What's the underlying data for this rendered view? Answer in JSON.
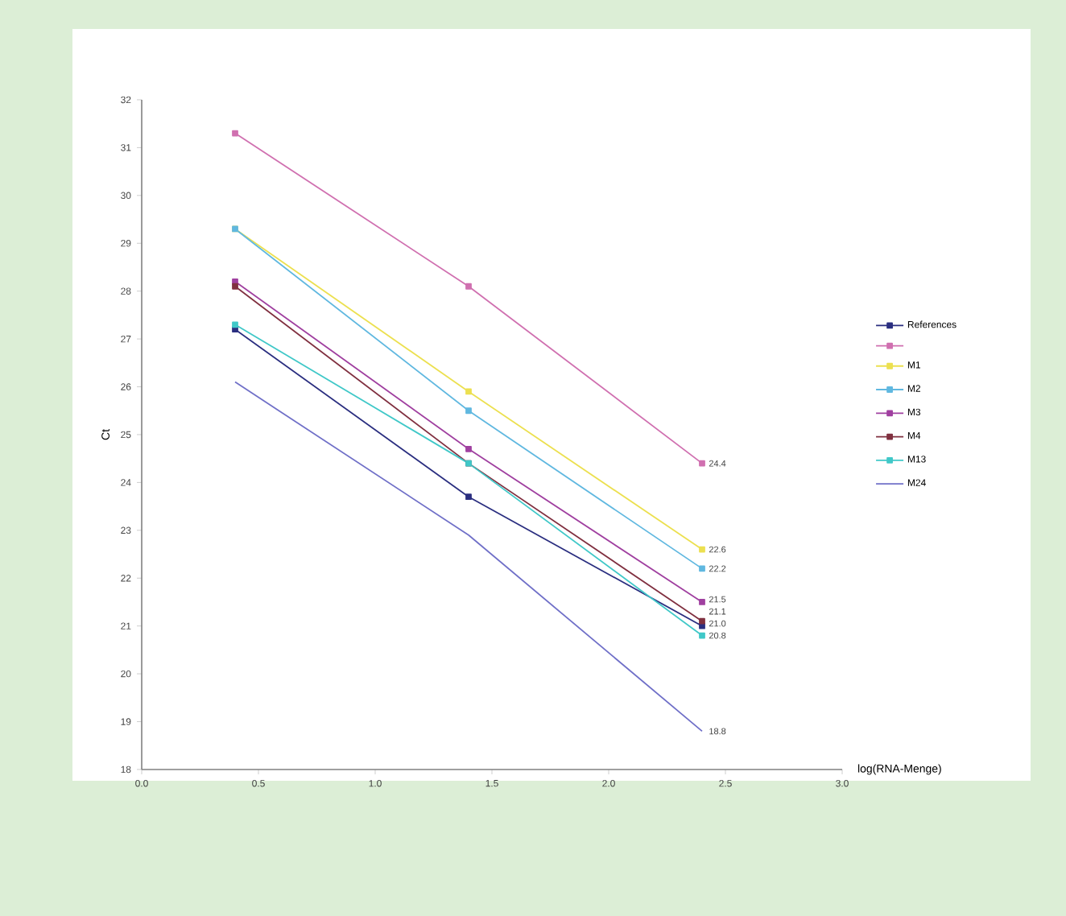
{
  "chart_data": {
    "type": "line",
    "xlabel": "log(RNA-Menge)",
    "ylabel": "Ct",
    "x": [
      0.4,
      1.4,
      2.4
    ],
    "xlim": [
      0,
      3
    ],
    "ylim": [
      18,
      32
    ],
    "xticks": [
      {
        "value": 0,
        "label": "0.0"
      },
      {
        "value": 0.5,
        "label": "0.5"
      },
      {
        "value": 1,
        "label": "1.0"
      },
      {
        "value": 1.5,
        "label": "1.5"
      },
      {
        "value": 2,
        "label": "2.0"
      },
      {
        "value": 2.5,
        "label": "2.5"
      },
      {
        "value": 3,
        "label": "3.0"
      }
    ],
    "yticks": [
      18,
      19,
      20,
      21,
      22,
      23,
      24,
      25,
      26,
      27,
      28,
      29,
      30,
      31,
      32
    ],
    "grid": false,
    "legend": "right",
    "marker": "square",
    "series": [
      {
        "name": "References",
        "color": "#2b2f80",
        "values": [
          27.2,
          23.7,
          21.0
        ],
        "value_labels": [
          null,
          null,
          "21.0"
        ]
      },
      {
        "color": "#d070b0",
        "values": [
          31.3,
          28.1,
          24.4
        ],
        "value_labels": [
          null,
          null,
          "24.4"
        ]
      },
      {
        "name": "M1",
        "color": "#ece050",
        "values": [
          29.3,
          25.9,
          22.6
        ],
        "value_labels": [
          null,
          null,
          "22.6"
        ]
      },
      {
        "name": "M2",
        "color": "#60b8e0",
        "values": [
          29.3,
          25.5,
          22.2
        ],
        "value_labels": [
          null,
          null,
          "22.2"
        ]
      },
      {
        "name": "M3",
        "color": "#a040a0",
        "values": [
          28.2,
          24.7,
          21.5
        ],
        "value_labels": [
          null,
          null,
          "21.5"
        ]
      },
      {
        "name": "M4",
        "color": "#803040",
        "values": [
          28.1,
          24.4,
          21.1
        ],
        "value_labels": [
          null,
          null,
          "21.1"
        ]
      },
      {
        "name": "M13",
        "color": "#40c8c8",
        "values": [
          27.3,
          24.4,
          20.8
        ],
        "value_labels": [
          null,
          null,
          "20.8"
        ]
      },
      {
        "name": "M24",
        "color": "#7070c8",
        "values": [
          26.1,
          22.9,
          18.8
        ],
        "value_labels": [
          null,
          null,
          "18.8"
        ],
        "marker": "none"
      }
    ]
  }
}
